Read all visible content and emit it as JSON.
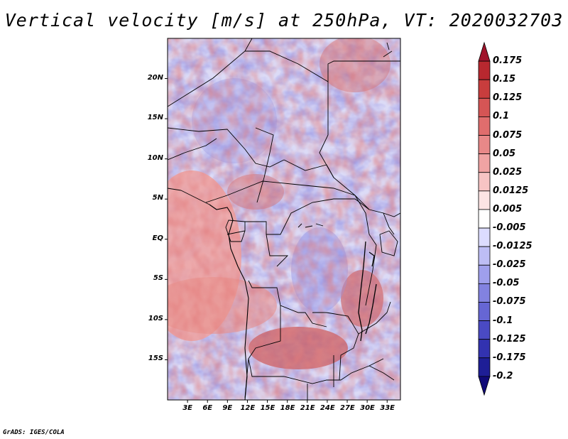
{
  "title": "Vertical velocity [m/s] at 250hPa, VT: 2020032703",
  "footer": "GrADS: IGES/COLA",
  "map": {
    "variable": "Vertical velocity",
    "units": "m/s",
    "level": "250hPa",
    "valid_time": "2020032703",
    "lon_range": [
      0,
      35
    ],
    "lat_range": [
      -20,
      25
    ],
    "lat_ticks": [
      {
        "label": "20N",
        "value": 20
      },
      {
        "label": "15N",
        "value": 15
      },
      {
        "label": "10N",
        "value": 10
      },
      {
        "label": "5N",
        "value": 5
      },
      {
        "label": "EQ",
        "value": 0
      },
      {
        "label": "5S",
        "value": -5
      },
      {
        "label": "10S",
        "value": -10
      },
      {
        "label": "15S",
        "value": -15
      }
    ],
    "lon_ticks": [
      {
        "label": "3E",
        "value": 3
      },
      {
        "label": "6E",
        "value": 6
      },
      {
        "label": "9E",
        "value": 9
      },
      {
        "label": "12E",
        "value": 12
      },
      {
        "label": "15E",
        "value": 15
      },
      {
        "label": "18E",
        "value": 18
      },
      {
        "label": "21E",
        "value": 21
      },
      {
        "label": "24E",
        "value": 24
      },
      {
        "label": "27E",
        "value": 27
      },
      {
        "label": "30E",
        "value": 30
      },
      {
        "label": "33E",
        "value": 33
      }
    ]
  },
  "colorbar": {
    "labels": [
      "0.175",
      "0.15",
      "0.125",
      "0.1",
      "0.075",
      "0.05",
      "0.025",
      "0.0125",
      "0.005",
      "-0.005",
      "-0.0125",
      "-0.025",
      "-0.05",
      "-0.075",
      "-0.1",
      "-0.125",
      "-0.175",
      "-0.2"
    ],
    "colors": [
      "#a0142b",
      "#b8282f",
      "#c83d3d",
      "#d55555",
      "#e06d6d",
      "#e88888",
      "#f0a3a3",
      "#f7c4c4",
      "#fce4e4",
      "#ffffff",
      "#dcdcff",
      "#bdbdf5",
      "#9f9fec",
      "#8282e0",
      "#6666d4",
      "#4a4ac4",
      "#3232b0",
      "#1e1e96",
      "#100a78"
    ]
  }
}
